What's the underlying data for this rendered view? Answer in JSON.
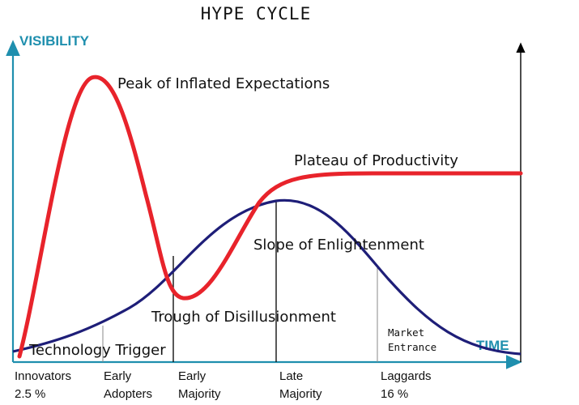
{
  "title": "HYPE CYCLE",
  "axes": {
    "y_label": "VISIBILITY",
    "x_label": "TIME",
    "color": "#1f8fae"
  },
  "phases": [
    "Technology Trigger",
    "Peak of Inflated Expectations",
    "Trough of Disillusionment",
    "Slope of Enlightenment",
    "Plateau of Productivity"
  ],
  "adopter_segments": [
    {
      "line1": "Innovators",
      "line2": "2.5 %"
    },
    {
      "line1": "Early",
      "line2": "Adopters"
    },
    {
      "line1": "Early",
      "line2": "Majority"
    },
    {
      "line1": "Late",
      "line2": "Majority"
    },
    {
      "line1": "Laggards",
      "line2": "16 %"
    }
  ],
  "market_entrance": {
    "line1": "Market",
    "line2": "Entrance"
  },
  "colors": {
    "hype_curve": "#e8232b",
    "adoption_curve": "#1e1e78",
    "axis": "#1f8fae",
    "text": "#111111"
  }
}
